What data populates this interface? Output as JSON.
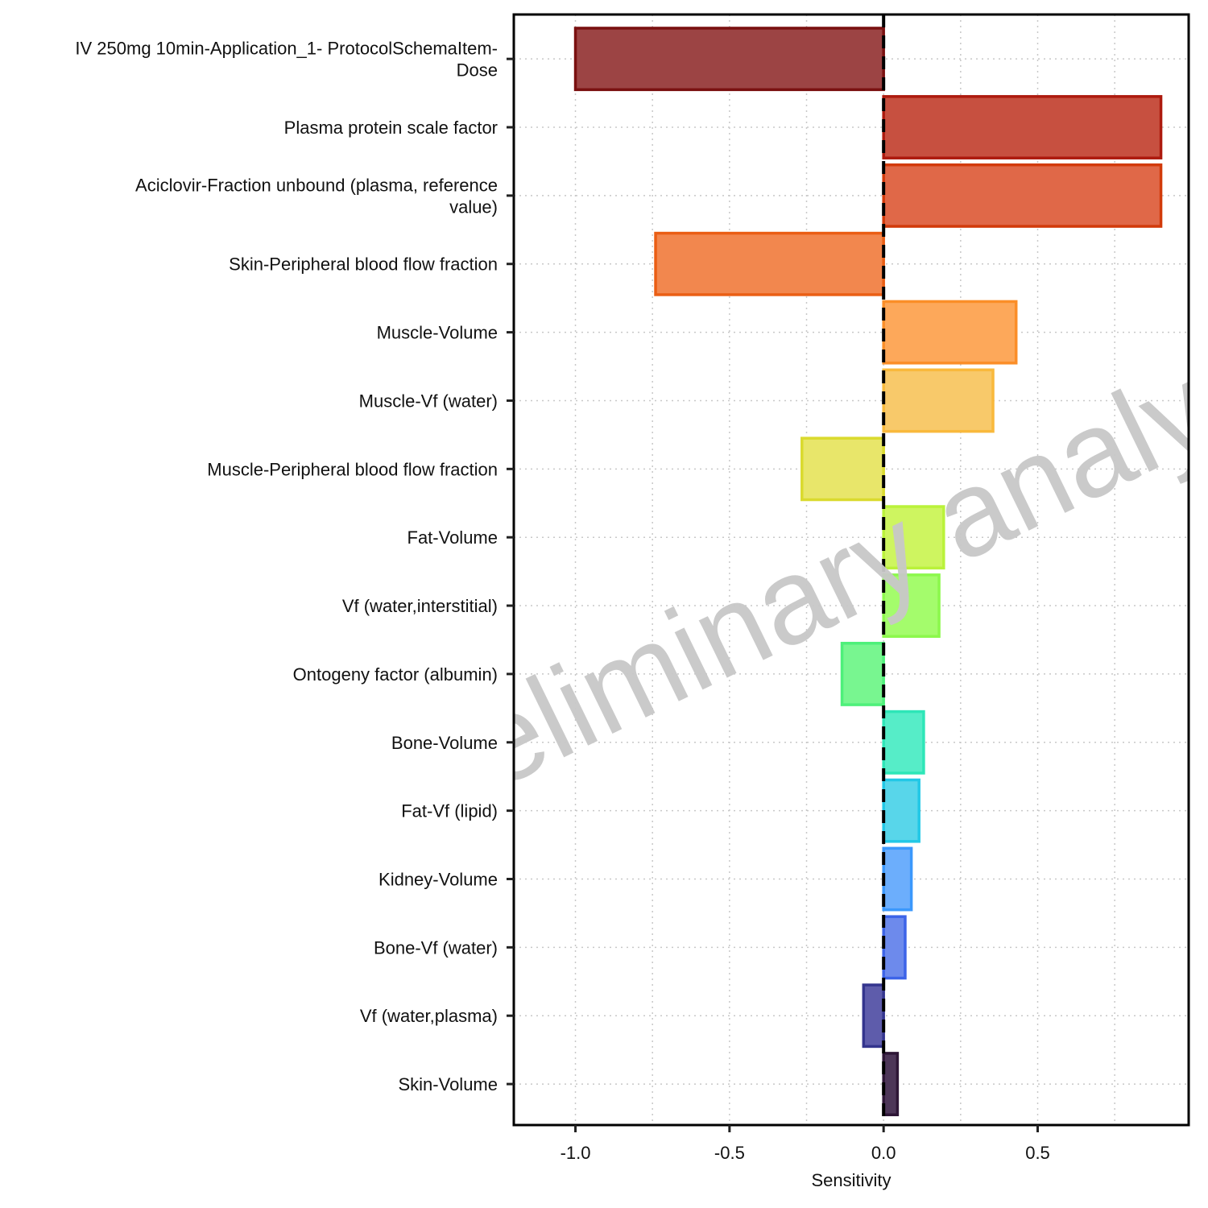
{
  "chart_data": {
    "type": "bar",
    "orientation": "horizontal",
    "categories": [
      [
        "IV 250mg 10min-Application_1- ProtocolSchemaItem-",
        "Dose"
      ],
      [
        "Plasma protein scale factor"
      ],
      [
        "Aciclovir-Fraction unbound (plasma, reference",
        "value)"
      ],
      [
        "Skin-Peripheral blood flow fraction"
      ],
      [
        "Muscle-Volume"
      ],
      [
        "Muscle-Vf (water)"
      ],
      [
        "Muscle-Peripheral blood flow fraction"
      ],
      [
        "Fat-Volume"
      ],
      [
        "Vf (water,interstitial)"
      ],
      [
        "Ontogeny factor (albumin)"
      ],
      [
        "Bone-Volume"
      ],
      [
        "Fat-Vf (lipid)"
      ],
      [
        "Kidney-Volume"
      ],
      [
        "Bone-Vf (water)"
      ],
      [
        "Vf (water,plasma)"
      ],
      [
        "Skin-Volume"
      ]
    ],
    "values": [
      -1.0,
      0.9,
      0.9,
      -0.74,
      0.43,
      0.355,
      -0.265,
      0.195,
      0.18,
      -0.135,
      0.13,
      0.115,
      0.09,
      0.07,
      -0.065,
      0.045
    ],
    "fill_colors": [
      "#9c4444",
      "#c75040",
      "#e06848",
      "#f2874e",
      "#fda85a",
      "#f8c96a",
      "#e8e66a",
      "#cef560",
      "#a4fc6c",
      "#78f690",
      "#56edc8",
      "#58d6ea",
      "#6caefc",
      "#6d8aec",
      "#5e5cab",
      "#4d3658"
    ],
    "stroke_colors": [
      "#7a1010",
      "#ad1a0e",
      "#d23a0a",
      "#ea5e14",
      "#fb8e28",
      "#f9b93c",
      "#dada2e",
      "#baf23a",
      "#8cf84c",
      "#4ef07a",
      "#2ee6b8",
      "#22c8e6",
      "#3b98fc",
      "#3d64e8",
      "#34358e",
      "#2e1636"
    ],
    "xlabel": "Sensitivity",
    "ylabel": "",
    "xlim": [
      -1.2,
      0.99
    ],
    "xticks": [
      -1.0,
      -0.5,
      0.0,
      0.5
    ],
    "xtick_labels": [
      "-1.0",
      "-0.5",
      "0.0",
      "0.5"
    ],
    "grid": true,
    "reference_line": 0.0
  },
  "watermark": "Preliminary analysis"
}
